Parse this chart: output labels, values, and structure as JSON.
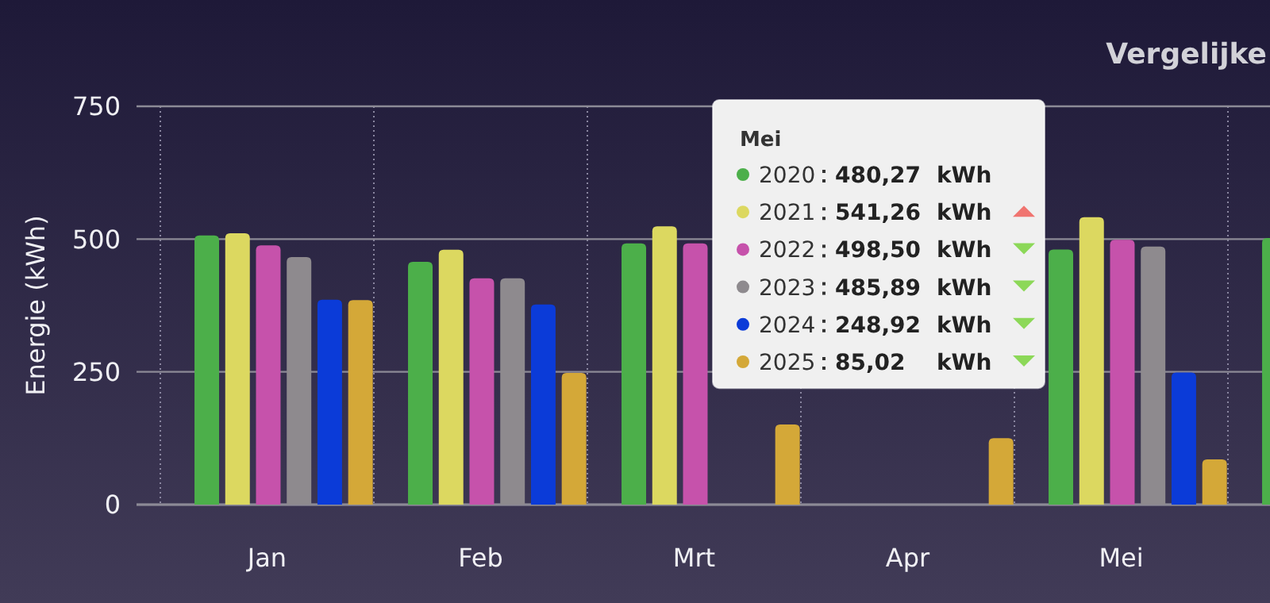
{
  "chart_data": {
    "type": "bar",
    "title": "Vergelijke",
    "ylabel": "Energie (kWh)",
    "legend_title": "Mei",
    "legend": "top",
    "categories": [
      "Jan",
      "Feb",
      "Mrt",
      "Apr",
      "Mei",
      null
    ],
    "ylim": [
      0,
      750
    ],
    "yticks": [
      0,
      250,
      500,
      750
    ],
    "grid": true,
    "series": [
      {
        "name": "2020",
        "color": "#4caf4a",
        "values": [
          507,
          457,
          492,
          null,
          480.27,
          502
        ]
      },
      {
        "name": "2021",
        "color": "#dcd860",
        "values": [
          511,
          480,
          524,
          null,
          541.26,
          null
        ]
      },
      {
        "name": "2022",
        "color": "#c652ab",
        "values": [
          488,
          426,
          492,
          null,
          498.5,
          null
        ]
      },
      {
        "name": "2023",
        "color": "#8e8a8e",
        "values": [
          466,
          426,
          null,
          null,
          485.89,
          null
        ]
      },
      {
        "name": "2024",
        "color": "#0b3bd8",
        "values": [
          386,
          377,
          null,
          null,
          248.92,
          null
        ]
      },
      {
        "name": "2025",
        "color": "#d4a838",
        "values": [
          385,
          248,
          151,
          125,
          85.02,
          null
        ]
      }
    ],
    "annotations": [
      "480,27 kWh",
      "541,26 kWh",
      "498,50 kWh",
      "485,89 kWh",
      "248,92 kWh",
      "85,02 kWh"
    ]
  }
}
